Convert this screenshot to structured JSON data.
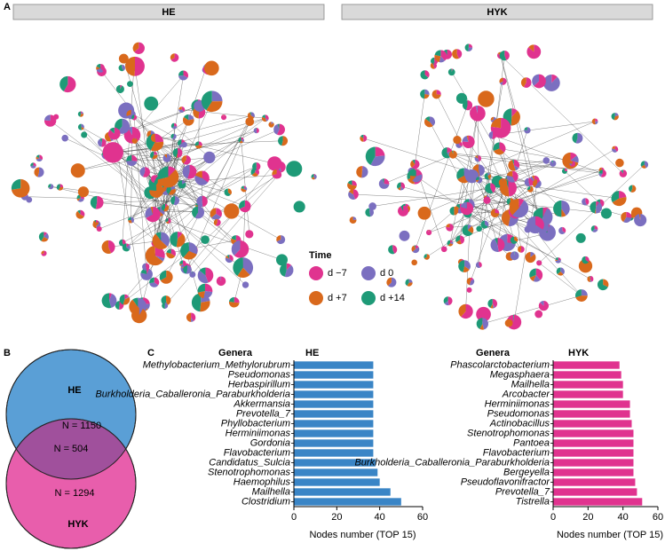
{
  "panel_labels": [
    "A",
    "B",
    "C"
  ],
  "networks": {
    "panels": [
      "HE",
      "HYK"
    ],
    "legend": {
      "title": "Time",
      "items": [
        {
          "label": "d −7",
          "color": "#e0338f"
        },
        {
          "label": "d 0",
          "color": "#7b6fc0"
        },
        {
          "label": "d +7",
          "color": "#d9691c"
        },
        {
          "label": "d +14",
          "color": "#1e9a77"
        }
      ]
    }
  },
  "venn": {
    "sets": [
      {
        "name": "HE",
        "count_label": "N = 1150",
        "color": "#5a9fd6"
      },
      {
        "name": "HYK",
        "count_label": "N = 1294",
        "color": "#e85eac"
      }
    ],
    "overlap_label": "N = 504",
    "overlap_color": "#a0509c"
  },
  "chart_data": [
    {
      "type": "hbar",
      "title": "HE",
      "y_label": "Genera",
      "x_label": "Nodes number (TOP 15)",
      "color": "#3a85c6",
      "categories": [
        "Methylobacterium_Methylorubrum",
        "Pseudomonas",
        "Herbaspirillum",
        "Burkholderia_Caballeronia_Paraburkholderia",
        "Akkermansia",
        "Prevotella_7",
        "Phyllobacterium",
        "Herminiimonas",
        "Gordonia",
        "Flavobacterium",
        "Candidatus_Sulcia",
        "Stenotrophomonas",
        "Haemophilus",
        "Mailhella",
        "Clostridium"
      ],
      "values": [
        37,
        37,
        37,
        37,
        37,
        37,
        37,
        37,
        37,
        37,
        38,
        39,
        40,
        45,
        50
      ],
      "xlim": [
        0,
        60
      ],
      "xticks": [
        0,
        20,
        40,
        60
      ]
    },
    {
      "type": "hbar",
      "title": "HYK",
      "y_label": "Genera",
      "x_label": "Nodes number (TOP 15)",
      "color": "#e0338f",
      "categories": [
        "Phascolarctobacterium",
        "Megasphaera",
        "Mailhella",
        "Arcobacter",
        "Herminiimonas",
        "Pseudomonas",
        "Actinobacillus",
        "Stenotrophomonas",
        "Pantoea",
        "Flavobacterium",
        "Burkholderia_Caballeronia_Paraburkholderia",
        "Bergeyella",
        "Pseudoflavonifractor",
        "Prevotella_7",
        "Tistrella"
      ],
      "values": [
        38,
        39,
        40,
        40,
        44,
        44,
        45,
        46,
        46,
        46,
        46,
        46,
        47,
        48,
        51
      ],
      "xlim": [
        0,
        60
      ],
      "xticks": [
        0,
        20,
        40,
        60
      ]
    }
  ]
}
